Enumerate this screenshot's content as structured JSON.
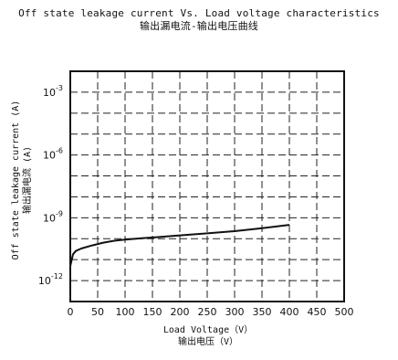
{
  "chart_data": {
    "type": "line",
    "title": "Off state leakage current Vs. Load voltage characteristics",
    "subtitle": "输出漏电流-输出电压曲线",
    "xlabel": "Load Voltage（V）",
    "xlabel_cn": "输出电压（V）",
    "ylabel": "Off state leakage current (A)",
    "ylabel_cn": "输出漏电流 (A)",
    "xlim": [
      0,
      500
    ],
    "ylim": [
      1e-13,
      0.01
    ],
    "yscale": "log",
    "grid": true,
    "x_ticks": [
      0,
      50,
      100,
      150,
      200,
      250,
      300,
      350,
      400,
      450,
      500
    ],
    "x_tick_labels": [
      "0",
      "50",
      "100",
      "150",
      "200",
      "250",
      "300",
      "350",
      "400",
      "450",
      "500"
    ],
    "y_ticks": [
      0.001,
      1e-06,
      1e-09,
      1e-12
    ],
    "y_tick_labels": [
      {
        "base": "10",
        "exp": "-3"
      },
      {
        "base": "10",
        "exp": "-6"
      },
      {
        "base": "10",
        "exp": "-9"
      },
      {
        "base": "10",
        "exp": "-12"
      }
    ],
    "series": [
      {
        "x": [
          0,
          5,
          10,
          20,
          40,
          60,
          80,
          100,
          130,
          160,
          200,
          250,
          300,
          350,
          400
        ],
        "y": [
          5e-12,
          1.8e-11,
          2.6e-11,
          3.4e-11,
          4.8e-11,
          6.5e-11,
          8e-11,
          9e-11,
          1.05e-10,
          1.2e-10,
          1.45e-10,
          1.8e-10,
          2.3e-10,
          3.2e-10,
          4.6e-10
        ]
      }
    ]
  }
}
